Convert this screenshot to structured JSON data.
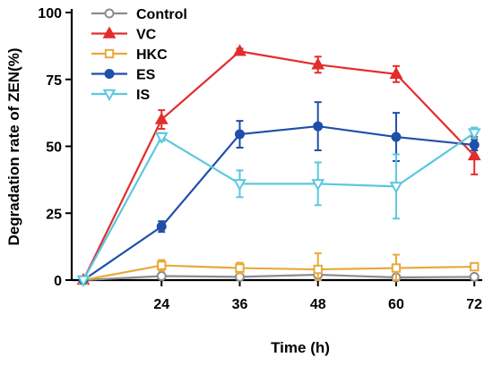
{
  "chart_data": {
    "type": "line",
    "title": "",
    "xlabel": "Time (h)",
    "ylabel": "Degradation rate of ZEN(%)",
    "x": [
      12,
      24,
      36,
      48,
      60,
      72
    ],
    "xticks": [
      24,
      36,
      48,
      60,
      72
    ],
    "xlim": [
      12,
      75
    ],
    "ylim": [
      0,
      100
    ],
    "yticks": [
      0,
      25,
      50,
      75,
      100
    ],
    "grid": false,
    "legend_position": "top-left",
    "series": [
      {
        "name": "Control",
        "color": "#8c8c8c",
        "marker": "circle-open",
        "values": [
          0,
          1.5,
          1.2,
          2.0,
          1.0,
          1.2
        ],
        "errors": [
          0,
          0.8,
          0.8,
          1.0,
          0.8,
          0.8
        ]
      },
      {
        "name": "VC",
        "color": "#e32d2d",
        "marker": "triangle-up",
        "values": [
          0,
          60,
          85.5,
          80.5,
          77,
          46.5
        ],
        "errors": [
          0,
          3.5,
          1.0,
          3.0,
          3.0,
          7.0
        ]
      },
      {
        "name": "HKC",
        "color": "#e8a93a",
        "marker": "square-open",
        "values": [
          0,
          5.5,
          4.5,
          4.0,
          4.5,
          5.0
        ],
        "errors": [
          0,
          2.0,
          2.0,
          6.0,
          5.0,
          1.0
        ]
      },
      {
        "name": "ES",
        "color": "#1f4fa8",
        "marker": "circle",
        "values": [
          0,
          20,
          54.5,
          57.5,
          53.5,
          50.5
        ],
        "errors": [
          0,
          2.0,
          5.0,
          9.0,
          9.0,
          2.0
        ]
      },
      {
        "name": "IS",
        "color": "#5bc8df",
        "marker": "triangle-down-open",
        "values": [
          0,
          53.5,
          36,
          36,
          35,
          55
        ],
        "errors": [
          0,
          1.5,
          5.0,
          8.0,
          12.0,
          2.0
        ]
      }
    ]
  }
}
